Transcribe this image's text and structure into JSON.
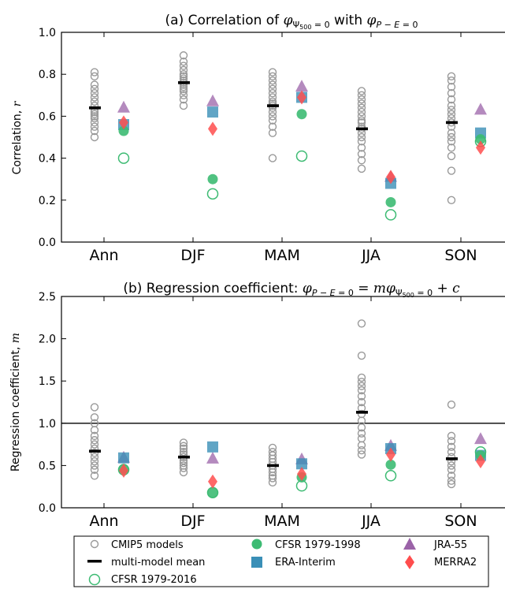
{
  "colors": {
    "cmip5": "#999999",
    "mean": "#000000",
    "cfsr_full": "#3dbb73",
    "cfsr_early": "#3dbb73",
    "era_interim": "#3a8fb7",
    "jra55": "#9b63a8",
    "merra2": "#ff4d4d"
  },
  "chart_data": [
    {
      "type": "scatter",
      "title_parts": [
        "(a) Correlation of ",
        "φ",
        "Ψ",
        "500",
        " = 0",
        " with ",
        "φ",
        "P − E",
        " = 0"
      ],
      "ylabel_parts": [
        "Correlation, ",
        "r"
      ],
      "ylim": [
        0.0,
        1.0
      ],
      "yticks": [
        "0.0",
        "0.2",
        "0.4",
        "0.6",
        "0.8",
        "1.0"
      ],
      "ytick_values": [
        0.0,
        0.2,
        0.4,
        0.6,
        0.8,
        1.0
      ],
      "categories": [
        "Ann",
        "DJF",
        "MAM",
        "JJA",
        "SON"
      ],
      "cmip5_models": [
        [
          0.5,
          0.53,
          0.55,
          0.57,
          0.59,
          0.6,
          0.61,
          0.62,
          0.63,
          0.65,
          0.67,
          0.69,
          0.71,
          0.73,
          0.75,
          0.79,
          0.81
        ],
        [
          0.65,
          0.68,
          0.7,
          0.72,
          0.73,
          0.74,
          0.75,
          0.76,
          0.77,
          0.78,
          0.79,
          0.8,
          0.82,
          0.84,
          0.86,
          0.89
        ],
        [
          0.4,
          0.52,
          0.55,
          0.58,
          0.6,
          0.62,
          0.64,
          0.65,
          0.66,
          0.67,
          0.69,
          0.71,
          0.73,
          0.75,
          0.77,
          0.79,
          0.81
        ],
        [
          0.35,
          0.39,
          0.42,
          0.45,
          0.48,
          0.5,
          0.52,
          0.54,
          0.55,
          0.57,
          0.58,
          0.6,
          0.62,
          0.64,
          0.66,
          0.68,
          0.7,
          0.72
        ],
        [
          0.2,
          0.34,
          0.41,
          0.45,
          0.48,
          0.5,
          0.52,
          0.55,
          0.57,
          0.59,
          0.61,
          0.63,
          0.65,
          0.68,
          0.71,
          0.74,
          0.77,
          0.79
        ]
      ],
      "multi_model_mean": [
        0.64,
        0.76,
        0.65,
        0.54,
        0.57
      ],
      "cfsr_1979_1998": [
        0.53,
        0.3,
        0.61,
        0.19,
        0.49
      ],
      "cfsr_1979_2016": [
        0.4,
        0.23,
        0.41,
        0.13,
        0.48
      ],
      "era_interim": [
        0.56,
        0.62,
        0.69,
        0.28,
        0.52
      ],
      "jra55": [
        0.64,
        0.67,
        0.74,
        0.31,
        0.63
      ],
      "merra2": [
        0.57,
        0.54,
        0.69,
        0.31,
        0.45
      ]
    },
    {
      "type": "scatter",
      "title_parts": [
        "(b) Regression coefficient: ",
        "φ",
        "P − E",
        " = 0",
        " = ",
        "m",
        "φ",
        "Ψ",
        "500",
        " = 0",
        " + ",
        "c"
      ],
      "ylabel_parts": [
        "Regression coefficient, ",
        "m"
      ],
      "ylim": [
        0.0,
        2.5
      ],
      "yticks": [
        "0.0",
        "0.5",
        "1.0",
        "1.5",
        "2.0",
        "2.5"
      ],
      "ytick_values": [
        0.0,
        0.5,
        1.0,
        1.5,
        2.0,
        2.5
      ],
      "reference_line": 1.0,
      "categories": [
        "Ann",
        "DJF",
        "MAM",
        "JJA",
        "SON"
      ],
      "cmip5_models": [
        [
          0.38,
          0.45,
          0.5,
          0.55,
          0.6,
          0.65,
          0.7,
          0.75,
          0.8,
          0.85,
          0.92,
          1.0,
          1.07,
          1.19
        ],
        [
          0.42,
          0.47,
          0.5,
          0.53,
          0.56,
          0.6,
          0.63,
          0.66,
          0.7,
          0.73,
          0.77
        ],
        [
          0.3,
          0.35,
          0.38,
          0.42,
          0.46,
          0.5,
          0.54,
          0.58,
          0.62,
          0.66,
          0.71
        ],
        [
          0.63,
          0.68,
          0.74,
          0.82,
          0.88,
          0.95,
          1.03,
          1.11,
          1.18,
          1.25,
          1.32,
          1.39,
          1.44,
          1.49,
          1.54,
          1.8,
          2.18
        ],
        [
          0.28,
          0.32,
          0.38,
          0.45,
          0.5,
          0.55,
          0.6,
          0.66,
          0.72,
          0.79,
          0.85,
          1.22
        ]
      ],
      "multi_model_mean": [
        0.67,
        0.6,
        0.5,
        1.13,
        0.58
      ],
      "cfsr_1979_1998": [
        0.46,
        0.18,
        0.36,
        0.51,
        0.62
      ],
      "cfsr_1979_2016": [
        0.45,
        0.18,
        0.26,
        0.38,
        0.66
      ],
      "era_interim": [
        0.59,
        0.72,
        0.52,
        0.7,
        0.62
      ],
      "jra55": [
        0.59,
        0.58,
        0.57,
        0.73,
        0.81
      ],
      "merra2": [
        0.44,
        0.31,
        0.4,
        0.63,
        0.55
      ]
    }
  ],
  "legend": {
    "cmip5": "CMIP5 models",
    "mean": "multi-model mean",
    "cfsr_full": "CFSR 1979-2016",
    "cfsr_early": "CFSR 1979-1998",
    "era_interim": "ERA-Interim",
    "jra55": "JRA-55",
    "merra2": "MERRA2"
  }
}
